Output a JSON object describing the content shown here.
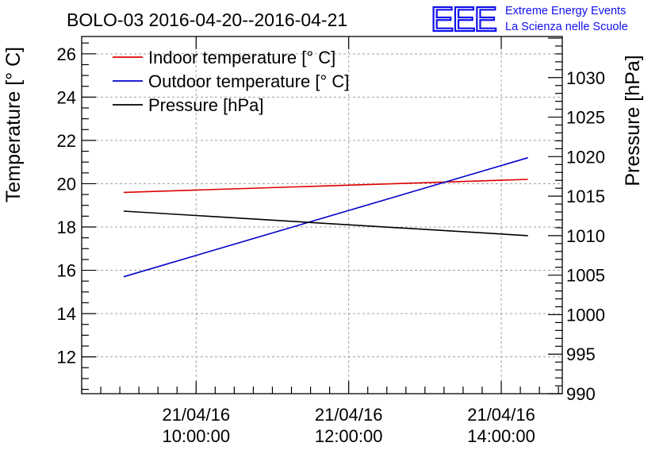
{
  "chart_data": {
    "type": "line",
    "title": "BOLO-03 2016-04-20--2016-04-21",
    "ylabel_left": "Temperature [° C]",
    "ylabel_right": "Pressure [hPa]",
    "logo": {
      "mark": "EEE",
      "line1": "Extreme Energy Events",
      "line2": "La Scienza nelle Scuole",
      "color": "#1010ee"
    },
    "x_unit": "hours",
    "xlim": [
      8.5,
      14.8
    ],
    "x_ticks": [
      {
        "x": 10,
        "date": "21/04/16",
        "time": "10:00:00"
      },
      {
        "x": 12,
        "date": "21/04/16",
        "time": "12:00:00"
      },
      {
        "x": 14,
        "date": "21/04/16",
        "time": "14:00:00"
      }
    ],
    "ylim_left": [
      10.3,
      26.8
    ],
    "left_ticks": [
      12,
      14,
      16,
      18,
      20,
      22,
      24,
      26
    ],
    "ylim_right": [
      990,
      1035.2
    ],
    "right_ticks": [
      990,
      995,
      1000,
      1005,
      1010,
      1015,
      1020,
      1025,
      1030
    ],
    "grid": true,
    "legend_position": "top-left",
    "series": [
      {
        "name": "Indoor temperature [° C]",
        "axis": "left",
        "color": "#dd0000",
        "x": [
          9.05,
          14.35
        ],
        "y": [
          19.6,
          20.2
        ]
      },
      {
        "name": "Outdoor temperature [° C]",
        "axis": "left",
        "color": "#0000cc",
        "x": [
          9.05,
          14.35
        ],
        "y": [
          15.7,
          21.2
        ]
      },
      {
        "name": "Pressure [hPa]",
        "axis": "right",
        "color": "#000000",
        "x": [
          9.05,
          14.35
        ],
        "y": [
          1013.1,
          1010.0
        ]
      }
    ]
  }
}
